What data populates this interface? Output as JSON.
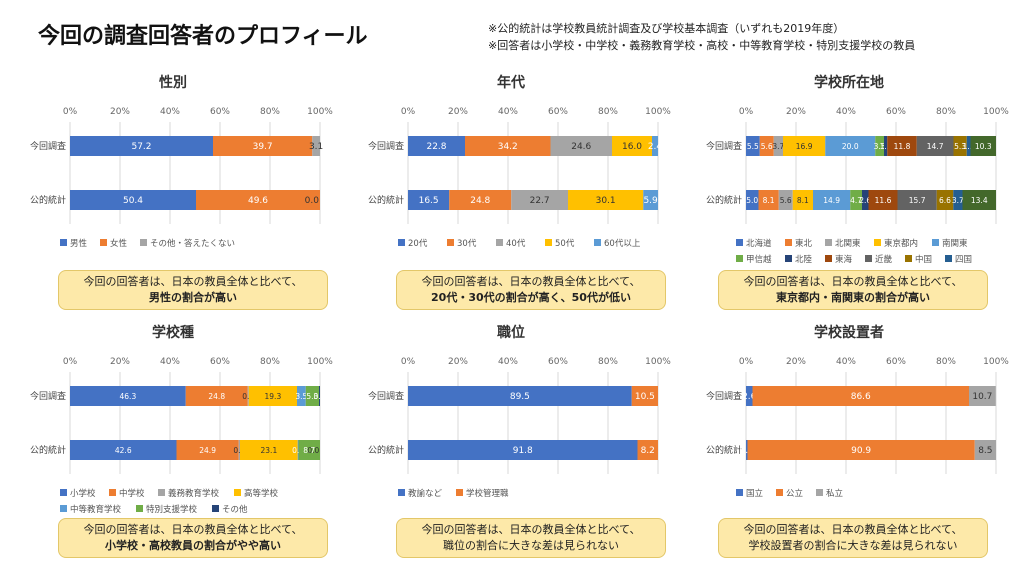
{
  "header": {
    "title": "今回の調査回答者のプロフィール",
    "note1": "※公的統計は学校教員統計調査及び学校基本調査（いずれも2019年度）",
    "note2": "※回答者は小学校・中学校・義務教育学校・高校・中等教育学校・特別支援学校の教員"
  },
  "colors": {
    "blue": "#4472c4",
    "orange": "#ed7d31",
    "gray": "#a5a5a5",
    "yellow": "#ffc000",
    "lightblue": "#5b9bd5",
    "green": "#70ad47",
    "navy": "#264478",
    "brown": "#9e480e",
    "darkgray": "#636363",
    "olive": "#997300",
    "steel": "#255e91",
    "darkgreen": "#43682b"
  },
  "callouts": {
    "gender": {
      "line1": "今回の回答者は、日本の教員全体と比べて、",
      "line2": "男性の割合が高い"
    },
    "age": {
      "line1": "今回の回答者は、日本の教員全体と比べて、",
      "line2": "20代・30代の割合が高く、50代が低い"
    },
    "region": {
      "line1": "今回の回答者は、日本の教員全体と比べて、",
      "line2": "東京都内・南関東の割合が高い"
    },
    "school_type": {
      "line1": "今回の回答者は、日本の教員全体と比べて、",
      "line2": "小学校・高校教員の割合がやや高い"
    },
    "position": {
      "line1": "今回の回答者は、日本の教員全体と比べて、",
      "line2": "職位の割合に大きな差は見られない"
    },
    "founder": {
      "line1": "今回の回答者は、日本の教員全体と比べて、",
      "line2": "学校設置者の割合に大きな差は見られない"
    }
  },
  "chart_data": [
    {
      "id": "gender",
      "type": "bar",
      "stacked": true,
      "orientation": "horizontal",
      "title": "性別",
      "xlim": [
        0,
        100
      ],
      "ticks": [
        "0%",
        "20%",
        "40%",
        "60%",
        "80%",
        "100%"
      ],
      "categories": [
        "今回調査",
        "公的統計"
      ],
      "series": [
        {
          "name": "男性",
          "color": "#4472c4",
          "values": [
            57.2,
            50.4
          ],
          "labels": [
            "57.2",
            "50.4"
          ]
        },
        {
          "name": "女性",
          "color": "#ed7d31",
          "values": [
            39.7,
            49.6
          ],
          "labels": [
            "39.7",
            "49.6"
          ]
        },
        {
          "name": "その他・答えたくない",
          "color": "#a5a5a5",
          "values": [
            3.1,
            0.0
          ],
          "labels": [
            "3.1",
            "0.0"
          ]
        }
      ]
    },
    {
      "id": "age",
      "type": "bar",
      "stacked": true,
      "orientation": "horizontal",
      "title": "年代",
      "xlim": [
        0,
        100
      ],
      "ticks": [
        "0%",
        "20%",
        "40%",
        "60%",
        "80%",
        "100%"
      ],
      "categories": [
        "今回調査",
        "公的統計"
      ],
      "series": [
        {
          "name": "20代",
          "color": "#4472c4",
          "values": [
            22.8,
            16.5
          ],
          "labels": [
            "22.8",
            "16.5"
          ]
        },
        {
          "name": "30代",
          "color": "#ed7d31",
          "values": [
            34.2,
            24.8
          ],
          "labels": [
            "34.2",
            "24.8"
          ]
        },
        {
          "name": "40代",
          "color": "#a5a5a5",
          "values": [
            24.6,
            22.7
          ],
          "labels": [
            "24.6",
            "22.7"
          ]
        },
        {
          "name": "50代",
          "color": "#ffc000",
          "values": [
            16.0,
            30.1
          ],
          "labels": [
            "16.0",
            "30.1"
          ]
        },
        {
          "name": "60代以上",
          "color": "#5b9bd5",
          "values": [
            2.4,
            5.9
          ],
          "labels": [
            "2.4",
            "5.9"
          ]
        }
      ]
    },
    {
      "id": "region",
      "type": "bar",
      "stacked": true,
      "orientation": "horizontal",
      "title": "学校所在地",
      "xlim": [
        0,
        100
      ],
      "ticks": [
        "0%",
        "20%",
        "40%",
        "60%",
        "80%",
        "100%"
      ],
      "categories": [
        "今回調査",
        "公的統計"
      ],
      "series": [
        {
          "name": "北海道",
          "color": "#4472c4",
          "values": [
            5.5,
            5.0
          ],
          "labels": [
            "5.5",
            "5.0"
          ]
        },
        {
          "name": "東北",
          "color": "#ed7d31",
          "values": [
            5.6,
            8.1
          ],
          "labels": [
            "5.6",
            "8.1"
          ]
        },
        {
          "name": "北関東",
          "color": "#a5a5a5",
          "values": [
            3.7,
            5.6
          ],
          "labels": [
            "3.7",
            "5.6"
          ]
        },
        {
          "name": "東京都内",
          "color": "#ffc000",
          "values": [
            16.9,
            8.1
          ],
          "labels": [
            "16.9",
            "8.1"
          ]
        },
        {
          "name": "南関東",
          "color": "#5b9bd5",
          "values": [
            20.0,
            14.9
          ],
          "labels": [
            "20.0",
            "14.9"
          ]
        },
        {
          "name": "甲信越",
          "color": "#70ad47",
          "values": [
            3.5,
            4.7
          ],
          "labels": [
            "3.5",
            "4.7"
          ]
        },
        {
          "name": "北陸",
          "color": "#264478",
          "values": [
            1.3,
            2.6
          ],
          "labels": [
            "1.3",
            "2.6"
          ]
        },
        {
          "name": "東海",
          "color": "#9e480e",
          "values": [
            11.8,
            11.6
          ],
          "labels": [
            "11.8",
            "11.6"
          ]
        },
        {
          "name": "近畿",
          "color": "#636363",
          "values": [
            14.7,
            15.7
          ],
          "labels": [
            "14.7",
            "15.7"
          ]
        },
        {
          "name": "中国",
          "color": "#997300",
          "values": [
            5.3,
            6.6
          ],
          "labels": [
            "5.3",
            "6.6"
          ]
        },
        {
          "name": "四国",
          "color": "#255e91",
          "values": [
            1.5,
            3.7
          ],
          "labels": [
            "1.5",
            "3.7"
          ]
        },
        {
          "name": "九州・沖縄",
          "color": "#43682b",
          "values": [
            10.3,
            13.4
          ],
          "labels": [
            "10.3",
            "13.4"
          ]
        }
      ]
    },
    {
      "id": "school_type",
      "type": "bar",
      "stacked": true,
      "orientation": "horizontal",
      "title": "学校種",
      "xlim": [
        0,
        100
      ],
      "ticks": [
        "0%",
        "20%",
        "40%",
        "60%",
        "80%",
        "100%"
      ],
      "categories": [
        "今回調査",
        "公的統計"
      ],
      "series": [
        {
          "name": "小学校",
          "color": "#4472c4",
          "values": [
            46.3,
            42.6
          ],
          "labels": [
            "46.3",
            "42.6"
          ]
        },
        {
          "name": "中学校",
          "color": "#ed7d31",
          "values": [
            24.8,
            24.9
          ],
          "labels": [
            "24.8",
            "24.9"
          ]
        },
        {
          "name": "義務教育学校",
          "color": "#a5a5a5",
          "values": [
            0.4,
            0.5
          ],
          "labels": [
            "0.4",
            "0.5"
          ]
        },
        {
          "name": "高等学校",
          "color": "#ffc000",
          "values": [
            19.3,
            23.1
          ],
          "labels": [
            "19.3",
            "23.1"
          ]
        },
        {
          "name": "中等教育学校",
          "color": "#5b9bd5",
          "values": [
            3.5,
            0.3
          ],
          "labels": [
            "3.5",
            "0.3"
          ]
        },
        {
          "name": "特別支援学校",
          "color": "#70ad47",
          "values": [
            5.3,
            8.7
          ],
          "labels": [
            "5.3",
            "8.7"
          ]
        },
        {
          "name": "その他",
          "color": "#264478",
          "values": [
            0.4,
            0.0
          ],
          "labels": [
            "0.4",
            "0.0"
          ]
        }
      ]
    },
    {
      "id": "position",
      "type": "bar",
      "stacked": true,
      "orientation": "horizontal",
      "title": "職位",
      "xlim": [
        0,
        100
      ],
      "ticks": [
        "0%",
        "20%",
        "40%",
        "60%",
        "80%",
        "100%"
      ],
      "categories": [
        "今回調査",
        "公的統計"
      ],
      "series": [
        {
          "name": "教諭など",
          "color": "#4472c4",
          "values": [
            89.5,
            91.8
          ],
          "labels": [
            "89.5",
            "91.8"
          ]
        },
        {
          "name": "学校管理職",
          "color": "#ed7d31",
          "values": [
            10.5,
            8.2
          ],
          "labels": [
            "10.5",
            "8.2"
          ]
        }
      ]
    },
    {
      "id": "founder",
      "type": "bar",
      "stacked": true,
      "orientation": "horizontal",
      "title": "学校設置者",
      "xlim": [
        0,
        100
      ],
      "ticks": [
        "0%",
        "20%",
        "40%",
        "60%",
        "80%",
        "100%"
      ],
      "categories": [
        "今回調査",
        "公的統計"
      ],
      "series": [
        {
          "name": "国立",
          "color": "#4472c4",
          "values": [
            2.6,
            0.6
          ],
          "labels": [
            "2.6",
            "0.6"
          ]
        },
        {
          "name": "公立",
          "color": "#ed7d31",
          "values": [
            86.6,
            90.9
          ],
          "labels": [
            "86.6",
            "90.9"
          ]
        },
        {
          "name": "私立",
          "color": "#a5a5a5",
          "values": [
            10.7,
            8.5
          ],
          "labels": [
            "10.7",
            "8.5"
          ]
        }
      ]
    }
  ]
}
